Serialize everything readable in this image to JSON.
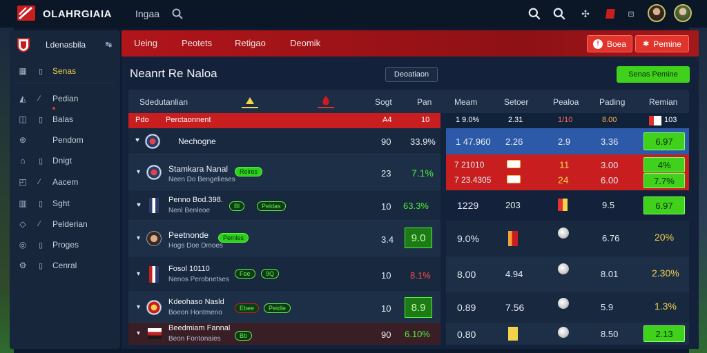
{
  "topbar": {
    "brand": "OLAHRGIAIA",
    "link": "Ingaa"
  },
  "sidebar": {
    "title": "Ldenasbila",
    "collapse": "↹",
    "items": [
      {
        "label": "Senas",
        "icon": "home-icon",
        "active": true
      },
      {
        "label": "Pedian",
        "icon": "flag-icon"
      },
      {
        "label": "Balas",
        "icon": "chart-icon"
      },
      {
        "label": "Pendom",
        "icon": "globe-icon"
      },
      {
        "label": "Dnigt",
        "icon": "triangle-icon"
      },
      {
        "label": "Aacem",
        "icon": "list-icon"
      },
      {
        "label": "Sght",
        "icon": "book-icon"
      },
      {
        "label": "Pelderian",
        "icon": "shield-icon"
      },
      {
        "label": "Proges",
        "icon": "clock-icon"
      },
      {
        "label": "Cenral",
        "icon": "gear-icon"
      }
    ]
  },
  "nav": {
    "tabs": [
      "Ueing",
      "Peotets",
      "Retigao",
      "Deomik"
    ],
    "btn1": "Boea",
    "btn2": "Pemine"
  },
  "page": {
    "title": "Neanrt Re Naloa",
    "dropdown": "Deoatiaon",
    "green_btn": "Senas Pemine"
  },
  "table": {
    "headers": {
      "name": "Sdedutanlian",
      "sogt": "Sogt",
      "pan": "Pan",
      "meam": "Meam",
      "setoer": "Setoer",
      "pealoa": "Pealoa",
      "pading": "Pading",
      "remian": "Remian"
    },
    "red_row": {
      "tag": "Pdo",
      "label": "Perctaonnent",
      "v1": "A4",
      "v2": "10",
      "r1": "1 9.0%",
      "r2": "2.31",
      "r3": "1/10",
      "r4": "8.00",
      "r5": "103"
    },
    "rows": [
      {
        "team": "Nechogne",
        "sub": "",
        "pills": [],
        "sogt": "90",
        "pan": "33.9%",
        "meam": "1 47.960",
        "setoer": "2.26",
        "pealoa": "2.9",
        "pading": "3.36",
        "remian": "6.97"
      },
      {
        "team": "Stamkara Nanal",
        "sub": "Neen Do Bengelieses",
        "pills": [
          "Relres"
        ],
        "sogt": "23",
        "pan": "7.1%",
        "meam_a": "7 21010",
        "meam_b": "7 23.4305",
        "pealoa_a": "11",
        "pealoa_b": "24",
        "pading_a": "3.00",
        "pading_b": "6.00",
        "remian_a": "4%",
        "remian_b": "7.7%"
      },
      {
        "team": "Penno Bod.398.",
        "sub": "Nenl Benleoe",
        "pills": [
          "Bl",
          "Peldas"
        ],
        "sogt": "10",
        "pan": "63.3%",
        "meam": "1229",
        "setoer": "203",
        "pading": "9.5",
        "remian": "6.97"
      },
      {
        "team": "Peetnonde",
        "sub": "Hogs Doe Dmoes",
        "pills": [
          "Pemles"
        ],
        "sogt": "3.4",
        "pan": "9.0",
        "meam": "9.0%",
        "pading": "6.76",
        "remian": "20%"
      },
      {
        "team": "Fosol 10110",
        "sub": "Nenos Perobnetses",
        "pills": [
          "Fee",
          "9Q"
        ],
        "sogt": "10",
        "pan": "8.1%",
        "meam": "8.00",
        "setoer": "4.94",
        "pading": "8.01",
        "remian": "2.30%"
      },
      {
        "team": "Kdeohaso Nasld",
        "sub": "Boeon Hontmeno",
        "pills": [
          "Ebee",
          "Peidle"
        ],
        "sogt": "10",
        "pan": "8.9",
        "meam": "0.89",
        "setoer": "7.56",
        "pading": "5.9",
        "remian": "1.3%"
      },
      {
        "team": "Beedmiam Fannal",
        "sub": "Beon Fontonaies",
        "pills": [
          "Bb"
        ],
        "sogt": "90",
        "pan": "6.10%",
        "meam": "0.80",
        "pading": "8.50",
        "remian": "2.13"
      }
    ]
  },
  "colors": {
    "accent_red": "#c81e1f",
    "accent_green": "#3fd11c",
    "accent_yellow": "#f3d34a",
    "bg": "#13223a"
  }
}
